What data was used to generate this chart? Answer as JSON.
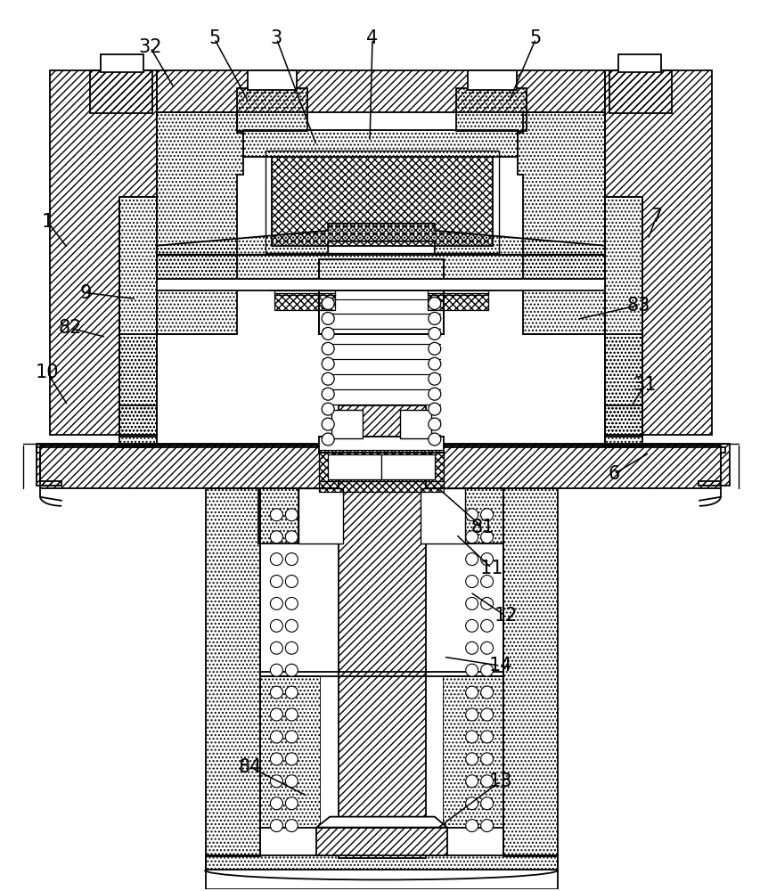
{
  "background": "#ffffff",
  "line_color": "#000000",
  "figsize": [
    8.54,
    10.0
  ],
  "dpi": 100,
  "labels": [
    [
      "32",
      168,
      52,
      195,
      98
    ],
    [
      "1",
      52,
      248,
      75,
      278
    ],
    [
      "3",
      310,
      42,
      355,
      162
    ],
    [
      "4",
      418,
      42,
      415,
      158
    ],
    [
      "5",
      240,
      42,
      278,
      112
    ],
    [
      "5",
      602,
      42,
      572,
      112
    ],
    [
      "6",
      690,
      532,
      730,
      508
    ],
    [
      "7",
      738,
      242,
      728,
      268
    ],
    [
      "9",
      95,
      328,
      152,
      335
    ],
    [
      "82",
      78,
      368,
      118,
      378
    ],
    [
      "10",
      52,
      418,
      75,
      455
    ],
    [
      "81",
      542,
      592,
      492,
      548
    ],
    [
      "11",
      552,
      638,
      512,
      600
    ],
    [
      "12",
      568,
      692,
      528,
      665
    ],
    [
      "14",
      562,
      748,
      498,
      738
    ],
    [
      "13",
      562,
      878,
      490,
      932
    ],
    [
      "31",
      725,
      432,
      710,
      455
    ],
    [
      "83",
      718,
      342,
      648,
      358
    ],
    [
      "84",
      280,
      862,
      345,
      895
    ]
  ]
}
